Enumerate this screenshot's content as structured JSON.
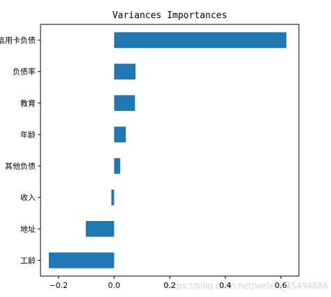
{
  "chart_data": {
    "type": "bar",
    "orientation": "horizontal",
    "title": "Variances Importances",
    "xlabel": "",
    "ylabel": "",
    "categories": [
      "工龄",
      "地址",
      "收入",
      "其他负债",
      "年龄",
      "教育",
      "负债率",
      "信用卡负债"
    ],
    "values": [
      -0.235,
      -0.102,
      -0.01,
      0.022,
      0.042,
      0.075,
      0.077,
      0.62
    ],
    "xlim": [
      -0.265,
      0.665
    ],
    "xticks": [
      -0.2,
      0.0,
      0.2,
      0.4,
      0.6
    ],
    "xtick_labels": [
      "−0.2",
      "0.0",
      "0.2",
      "0.4",
      "0.6"
    ],
    "bar_color": "#1f77b4",
    "grid": false,
    "legend": "none"
  },
  "watermark": "https://blog.csdn.net/weixin_45494886"
}
